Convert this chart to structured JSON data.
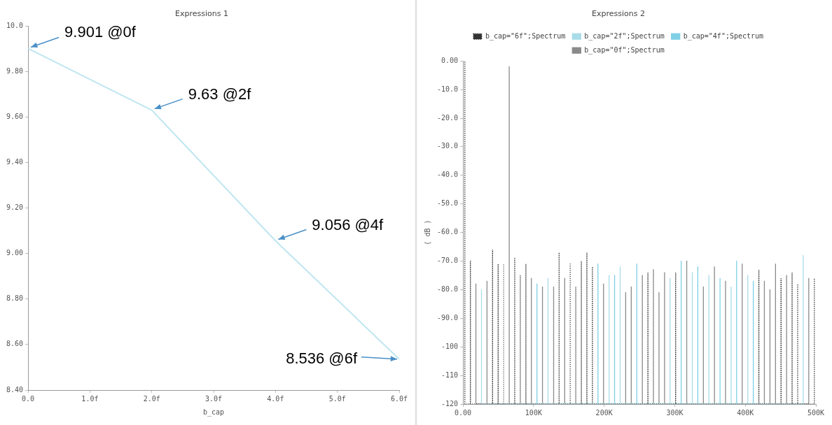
{
  "chart_data": [
    {
      "type": "line",
      "title": "Expressions 1",
      "xlabel": "b_cap",
      "series": [
        {
          "color": "#bfe6f0",
          "x": [
            0,
            2,
            4,
            6
          ],
          "values": [
            9.901,
            9.63,
            9.056,
            8.536
          ]
        }
      ],
      "xlim": [
        0,
        6
      ],
      "xticks": [
        {
          "value": 0,
          "label": "0.0"
        },
        {
          "value": 1,
          "label": "1.0f"
        },
        {
          "value": 2,
          "label": "2.0f"
        },
        {
          "value": 3,
          "label": "3.0f"
        },
        {
          "value": 4,
          "label": "4.0f"
        },
        {
          "value": 5,
          "label": "5.0f"
        },
        {
          "value": 6,
          "label": "6.0f"
        }
      ],
      "ylim": [
        8.4,
        10.0
      ],
      "yticks": [
        {
          "value": 8.4,
          "label": "8.40"
        },
        {
          "value": 8.6,
          "label": "8.60"
        },
        {
          "value": 8.8,
          "label": "8.80"
        },
        {
          "value": 9.0,
          "label": "9.00"
        },
        {
          "value": 9.2,
          "label": "9.20"
        },
        {
          "value": 9.4,
          "label": "9.40"
        },
        {
          "value": 9.6,
          "label": "9.60"
        },
        {
          "value": 9.8,
          "label": "9.80"
        },
        {
          "value": 10.0,
          "label": "10.0"
        }
      ],
      "marker": "none",
      "annotations": [
        {
          "text": "9.901 @0f",
          "x": 0,
          "y": 9.901
        },
        {
          "text": "9.63 @2f",
          "x": 2,
          "y": 9.63
        },
        {
          "text": "9.056 @4f",
          "x": 4,
          "y": 9.056
        },
        {
          "text": "8.536 @6f",
          "x": 6,
          "y": 8.536
        }
      ]
    },
    {
      "type": "line",
      "title": "Expressions 2",
      "ylabel": "( dB )",
      "marker": "none",
      "legend": "top",
      "series": [
        {
          "name": "b_cap=\"6f\";Spectrum",
          "color": "#333333",
          "line_style": "dotted",
          "x": [
            2600,
            2600,
            2600,
            10500,
            10500,
            10500,
            41900,
            41900,
            41900,
            49800,
            49800,
            49800,
            57600,
            57600,
            57600,
            73300,
            73300,
            73300,
            89100,
            89100,
            89100,
            136200,
            136200,
            136200,
            151900,
            151900,
            151900,
            167700,
            167700,
            167700,
            175500,
            175500,
            175500,
            183400,
            183400,
            183400,
            262000,
            262000,
            262000,
            301300,
            301300,
            301300,
            419200,
            419200,
            419200,
            450600,
            450600,
            450600,
            466300,
            466300,
            466300,
            474200,
            474200,
            474200,
            497800,
            497800,
            497800
          ],
          "values": [
            -120,
            0,
            -120,
            -120,
            -70,
            -120,
            -120,
            -66,
            -120,
            -120,
            -71,
            -120,
            -120,
            -71,
            -120,
            -120,
            -69,
            -120,
            -120,
            -71,
            -120,
            -120,
            -67,
            -120,
            -120,
            -71,
            -120,
            -120,
            -70,
            -120,
            -120,
            -67,
            -120,
            -120,
            -72,
            -120,
            -120,
            -74,
            -120,
            -120,
            -74,
            -120,
            -120,
            -73,
            -120,
            -120,
            -76,
            -120,
            -120,
            -74,
            -120,
            -120,
            -78,
            -120,
            -120,
            -76,
            -120
          ]
        },
        {
          "name": "b_cap=\"2f\";Spectrum",
          "color": "#a8dce8",
          "x": [
            26200,
            26200,
            26200,
            120500,
            120500,
            120500,
            207000,
            207000,
            207000,
            222700,
            222700,
            222700,
            293400,
            293400,
            293400,
            324900,
            324900,
            324900,
            348400,
            348400,
            348400,
            379900,
            379900,
            379900,
            403500,
            403500,
            403500,
            482100,
            482100,
            482100
          ],
          "values": [
            -120,
            -80,
            -120,
            -120,
            -76,
            -120,
            -120,
            -75,
            -120,
            -120,
            -72,
            -120,
            -120,
            -76,
            -120,
            -120,
            -74,
            -120,
            -120,
            -75,
            -120,
            -120,
            -79,
            -120,
            -120,
            -75,
            -120,
            -120,
            -68,
            -120
          ]
        },
        {
          "name": "b_cap=\"4f\";Spectrum",
          "color": "#7fcfe6",
          "x": [
            104800,
            104800,
            104800,
            191200,
            191200,
            191200,
            214800,
            214800,
            214800,
            246300,
            246300,
            246300,
            309100,
            309100,
            309100,
            332700,
            332700,
            332700,
            364200,
            364200,
            364200,
            387700,
            387700,
            387700,
            411300,
            411300,
            411300
          ],
          "values": [
            -120,
            -78,
            -120,
            -120,
            -71,
            -120,
            -120,
            -75,
            -120,
            -120,
            -71,
            -120,
            -120,
            -70,
            -120,
            -120,
            -72,
            -120,
            -120,
            -76,
            -120,
            -120,
            -70,
            -120,
            -120,
            -77,
            -120
          ]
        },
        {
          "name": "b_cap=\"0f\";Spectrum",
          "color": "#8a8a8a",
          "x": [
            18300,
            18300,
            18300,
            34000,
            34000,
            34000,
            65500,
            65500,
            65500,
            81200,
            81200,
            81200,
            96900,
            96900,
            96900,
            112600,
            112600,
            112600,
            128400,
            128400,
            128400,
            144100,
            144100,
            144100,
            159800,
            159800,
            159800,
            199100,
            199100,
            199100,
            230500,
            230500,
            230500,
            238400,
            238400,
            238400,
            254100,
            254100,
            254100,
            269800,
            269800,
            269800,
            277700,
            277700,
            277700,
            285600,
            285600,
            285600,
            317000,
            317000,
            317000,
            340600,
            340600,
            340600,
            356300,
            356300,
            356300,
            372000,
            372000,
            372000,
            395600,
            395600,
            395600,
            427000,
            427000,
            427000,
            434900,
            434900,
            434900,
            442800,
            442800,
            442800,
            458500,
            458500,
            458500,
            489900,
            489900,
            489900
          ],
          "values": [
            -120,
            -78,
            -120,
            -120,
            -77,
            -120,
            -120,
            -2,
            -120,
            -120,
            -75,
            -120,
            -120,
            -76,
            -120,
            -120,
            -79,
            -120,
            -120,
            -79,
            -120,
            -120,
            -76,
            -120,
            -120,
            -79,
            -120,
            -120,
            -78,
            -120,
            -120,
            -81,
            -120,
            -120,
            -79,
            -120,
            -120,
            -75,
            -120,
            -120,
            -73,
            -120,
            -120,
            -81,
            -120,
            -120,
            -74,
            -120,
            -120,
            -70,
            -120,
            -120,
            -79,
            -120,
            -120,
            -72,
            -120,
            -120,
            -77,
            -120,
            -120,
            -71,
            -120,
            -120,
            -77,
            -120,
            -120,
            -80,
            -120,
            -120,
            -71,
            -120,
            -120,
            -75,
            -120,
            -120,
            -76,
            -120
          ]
        }
      ],
      "xlim": [
        0,
        500000
      ],
      "xticks": [
        {
          "value": 0,
          "label": "0.00"
        },
        {
          "value": 100000,
          "label": "100K"
        },
        {
          "value": 200000,
          "label": "200K"
        },
        {
          "value": 300000,
          "label": "300K"
        },
        {
          "value": 400000,
          "label": "400K"
        },
        {
          "value": 500000,
          "label": "500K"
        }
      ],
      "ylim": [
        -120,
        0
      ],
      "yticks": [
        {
          "value": 0,
          "label": "0.00"
        },
        {
          "value": -10,
          "label": "-10.0"
        },
        {
          "value": -20,
          "label": "-20.0"
        },
        {
          "value": -30,
          "label": "-30.0"
        },
        {
          "value": -40,
          "label": "-40.0"
        },
        {
          "value": -50,
          "label": "-50.0"
        },
        {
          "value": -60,
          "label": "-60.0"
        },
        {
          "value": -70,
          "label": "-70.0"
        },
        {
          "value": -80,
          "label": "-80.0"
        },
        {
          "value": -90,
          "label": "-90.0"
        },
        {
          "value": -100,
          "label": "-100"
        },
        {
          "value": -110,
          "label": "-110"
        },
        {
          "value": -120,
          "label": "-120"
        }
      ]
    }
  ]
}
